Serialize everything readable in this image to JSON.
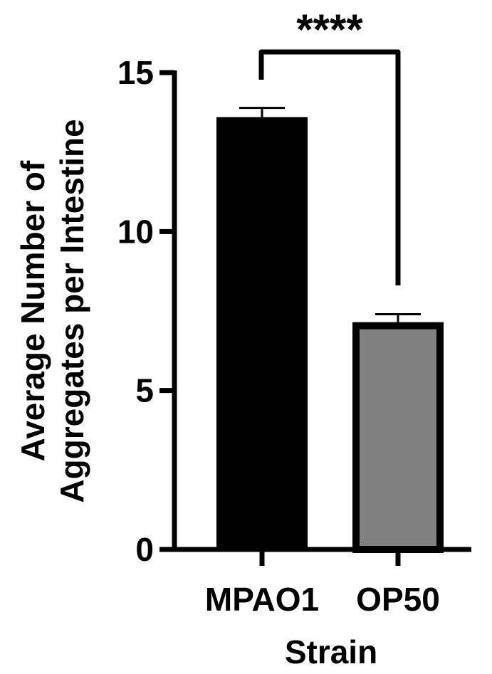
{
  "chart_data": {
    "type": "bar",
    "categories": [
      "MPAO1",
      "OP50"
    ],
    "values": [
      13.6,
      7.15
    ],
    "errors": [
      0.29,
      0.25
    ],
    "colors": [
      "#000000",
      "#808080"
    ],
    "xlabel": "Strain",
    "ylabel_lines": [
      "Average Number of",
      "Aggregates per Intestine"
    ],
    "ylim": [
      0,
      15
    ],
    "yticks": [
      0,
      5,
      10,
      15
    ],
    "ytick_labels": [
      "0",
      "5",
      "10",
      "15"
    ],
    "grid": false,
    "significance": {
      "between": [
        "MPAO1",
        "OP50"
      ],
      "label": "****"
    }
  }
}
